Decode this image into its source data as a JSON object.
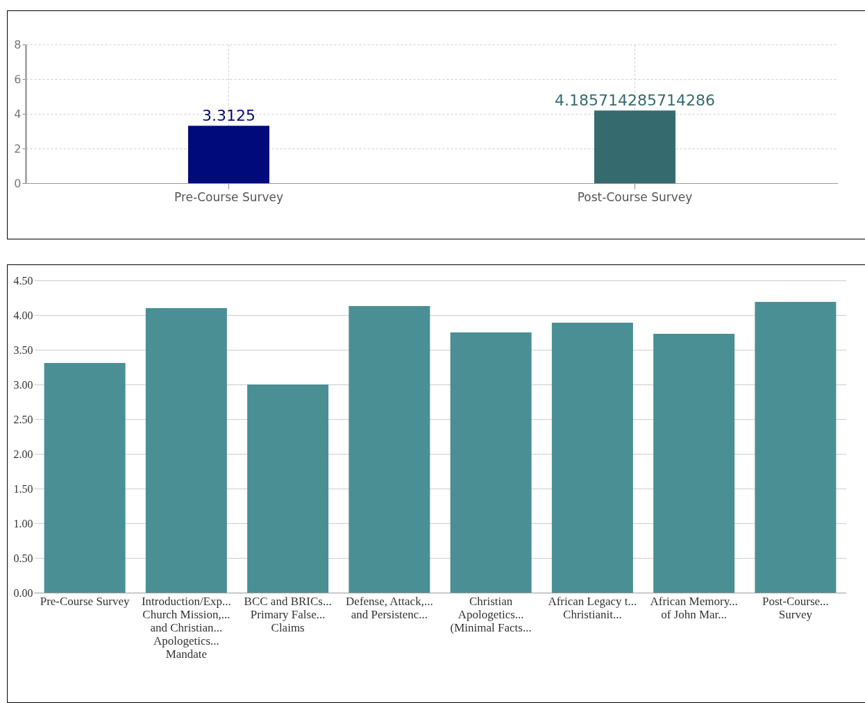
{
  "chart_data": [
    {
      "type": "bar",
      "categories": [
        "Pre-Course Survey",
        "Post-Course Survey"
      ],
      "values": [
        3.3125,
        4.185714285714286
      ],
      "colors": [
        "#000a7a",
        "#356b6e"
      ],
      "value_labels": [
        "3.3125",
        "4.185714285714286"
      ],
      "ylim": [
        0,
        8
      ],
      "yticks": [
        0,
        2,
        4,
        6,
        8
      ],
      "grid": true
    },
    {
      "type": "bar",
      "categories": [
        "Pre-Course Survey",
        "Introduction/Exp...\nChurch Mission,...\nand Christian...\nApologetics...\nMandate",
        "BCC and BRICs...\nPrimary False...\nClaims",
        "Defense, Attack,...\nand Persistenc...",
        "Christian\nApologetics...\n(Minimal Facts...",
        "African Legacy t...\nChristianit...",
        "African Memory...\nof John Mar...",
        "Post-Course...\nSurvey"
      ],
      "values": [
        3.31,
        4.1,
        3.0,
        4.13,
        3.75,
        3.89,
        3.73,
        4.19
      ],
      "color": "#4a8f94",
      "ylim": [
        0,
        4.5
      ],
      "yticks": [
        {
          "value": 0,
          "label": "0.00"
        },
        {
          "value": 0.5,
          "label": "0.50"
        },
        {
          "value": 1,
          "label": "1.00"
        },
        {
          "value": 1.5,
          "label": "1.50"
        },
        {
          "value": 2,
          "label": "2.00"
        },
        {
          "value": 2.5,
          "label": "2.50"
        },
        {
          "value": 3,
          "label": "3.00"
        },
        {
          "value": 3.5,
          "label": "3.50"
        },
        {
          "value": 4,
          "label": "4.00"
        },
        {
          "value": 4.5,
          "label": "4.50"
        }
      ],
      "grid": "y"
    }
  ]
}
